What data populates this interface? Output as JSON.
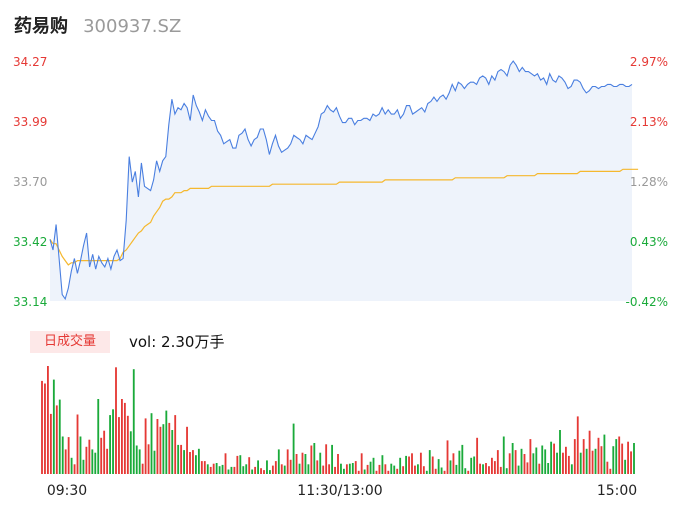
{
  "header": {
    "name": "药易购",
    "code": "300937.SZ"
  },
  "volume_panel": {
    "label": "日成交量",
    "vol_prefix": "vol: ",
    "vol_value": "2.30万手"
  },
  "colors": {
    "up": "#e53935",
    "down": "#1aaa3a",
    "neutral": "#999999",
    "price_line": "#4a7fe0",
    "avg_line": "#f5b82e",
    "area_fill": "#eef3fb"
  },
  "chart_data": [
    {
      "type": "line",
      "y_axis_left": [
        "34.27",
        "33.99",
        "33.70",
        "33.42",
        "33.14"
      ],
      "y_axis_right": [
        "2.97%",
        "2.13%",
        "1.28%",
        "0.43%",
        "-0.42%"
      ],
      "ylim": [
        33.14,
        34.27
      ],
      "series": [
        {
          "values": [
            33.43,
            33.38,
            33.5,
            33.34,
            33.17,
            33.15,
            33.2,
            33.28,
            33.34,
            33.27,
            33.33,
            33.4,
            33.46,
            33.3,
            33.36,
            33.29,
            33.35,
            33.32,
            33.3,
            33.34,
            33.29,
            33.35,
            33.38,
            33.33,
            33.34,
            33.52,
            33.82,
            33.7,
            33.75,
            33.63,
            33.79,
            33.68,
            33.67,
            33.66,
            33.71,
            33.8,
            33.75,
            33.8,
            33.82,
            33.97,
            34.09,
            34.02,
            34.05,
            34.04,
            34.07,
            34.05,
            33.99,
            34.11,
            34.06,
            34.03,
            33.99,
            34.04,
            34.01,
            33.99,
            33.99,
            33.94,
            33.92,
            33.88,
            33.89,
            33.9,
            33.86,
            33.86,
            33.92,
            33.93,
            33.95,
            33.9,
            33.87,
            33.9,
            33.91,
            33.95,
            33.95,
            33.9,
            33.83,
            33.88,
            33.92,
            33.87,
            33.84,
            33.85,
            33.86,
            33.88,
            33.92,
            33.91,
            33.9,
            33.88,
            33.92,
            33.91,
            33.9,
            33.93,
            33.96,
            34.02,
            34.03,
            34.06,
            34.04,
            34.03,
            34.05,
            34.01,
            33.98,
            33.98,
            34.0,
            34.0,
            33.97,
            33.99,
            33.99,
            34.0,
            34.0,
            33.99,
            34.02,
            34.01,
            34.02,
            34.05,
            34.02,
            34.04,
            34.02,
            34.02,
            34.04,
            34.0,
            34.02,
            34.06,
            34.06,
            34.02,
            34.03,
            34.04,
            34.05,
            34.03,
            34.07,
            34.08,
            34.1,
            34.08,
            34.1,
            34.11,
            34.09,
            34.12,
            34.16,
            34.13,
            34.17,
            34.16,
            34.14,
            34.16,
            34.17,
            34.17,
            34.16,
            34.19,
            34.2,
            34.19,
            34.16,
            34.2,
            34.18,
            34.22,
            34.23,
            34.22,
            34.2,
            34.25,
            34.27,
            34.25,
            34.22,
            34.24,
            34.22,
            34.22,
            34.21,
            34.2,
            34.21,
            34.18,
            34.19,
            34.16,
            34.21,
            34.18,
            34.17,
            34.2,
            34.19,
            34.17,
            34.14,
            34.15,
            34.18,
            34.18,
            34.17,
            34.14,
            34.12,
            34.13,
            34.15,
            34.15,
            34.14,
            34.15,
            34.15,
            34.16,
            34.16,
            34.15,
            34.15,
            34.16,
            34.16,
            34.15,
            34.15,
            34.16
          ]
        },
        {
          "values": [
            33.43,
            33.41,
            33.41,
            33.38,
            33.35,
            33.33,
            33.31,
            33.32,
            33.32,
            33.33,
            33.33,
            33.33,
            33.33,
            33.33,
            33.33,
            33.33,
            33.33,
            33.33,
            33.33,
            33.33,
            33.33,
            33.33,
            33.33,
            33.34,
            33.37,
            33.38,
            33.4,
            33.42,
            33.44,
            33.46,
            33.47,
            33.49,
            33.5,
            33.51,
            33.54,
            33.56,
            33.58,
            33.61,
            33.62,
            33.62,
            33.63,
            33.65,
            33.65,
            33.65,
            33.66,
            33.66,
            33.67,
            33.67,
            33.67,
            33.67,
            33.67,
            33.67,
            33.67,
            33.68,
            33.68,
            33.68,
            33.68,
            33.68,
            33.68,
            33.68,
            33.68,
            33.68,
            33.68,
            33.68,
            33.68,
            33.68,
            33.68,
            33.68,
            33.68,
            33.68,
            33.68,
            33.68,
            33.68,
            33.69,
            33.69,
            33.69,
            33.69,
            33.69,
            33.69,
            33.69,
            33.69,
            33.69,
            33.69,
            33.69,
            33.69,
            33.69,
            33.69,
            33.69,
            33.69,
            33.69,
            33.69,
            33.69,
            33.69,
            33.69,
            33.69,
            33.7,
            33.7,
            33.7,
            33.7,
            33.7,
            33.7,
            33.7,
            33.7,
            33.7,
            33.7,
            33.7,
            33.7,
            33.7,
            33.7,
            33.7,
            33.71,
            33.71,
            33.71,
            33.71,
            33.71,
            33.71,
            33.71,
            33.71,
            33.71,
            33.71,
            33.71,
            33.71,
            33.71,
            33.71,
            33.71,
            33.71,
            33.71,
            33.71,
            33.71,
            33.71,
            33.71,
            33.71,
            33.71,
            33.72,
            33.72,
            33.72,
            33.72,
            33.72,
            33.72,
            33.72,
            33.72,
            33.72,
            33.72,
            33.72,
            33.72,
            33.72,
            33.72,
            33.72,
            33.72,
            33.72,
            33.73,
            33.73,
            33.73,
            33.73,
            33.73,
            33.73,
            33.73,
            33.73,
            33.73,
            33.73,
            33.74,
            33.74,
            33.74,
            33.74,
            33.74,
            33.74,
            33.74,
            33.74,
            33.74,
            33.74,
            33.74,
            33.74,
            33.74,
            33.74,
            33.75,
            33.75,
            33.75,
            33.75,
            33.75,
            33.75,
            33.75,
            33.75,
            33.75,
            33.75,
            33.75,
            33.75,
            33.75,
            33.75,
            33.76,
            33.76,
            33.76,
            33.76,
            33.76,
            33.76
          ]
        }
      ]
    },
    {
      "type": "bar",
      "x_ticks": [
        "09:30",
        "11:30/13:00",
        "15:00"
      ],
      "values": [
        14.4,
        14.0,
        16.7,
        9.3,
        14.6,
        10.6,
        11.5,
        5.8,
        3.8,
        5.7,
        2.5,
        1.5,
        9.2,
        5.8,
        2.2,
        4.2,
        5.3,
        3.8,
        3.3,
        11.6,
        5.6,
        6.7,
        3.9,
        9.1,
        10.0,
        16.5,
        8.8,
        11.6,
        11.0,
        9.0,
        6.6,
        16.2,
        4.4,
        3.8,
        1.6,
        8.6,
        4.6,
        9.4,
        3.6,
        8.5,
        7.3,
        7.7,
        9.8,
        7.9,
        6.8,
        9.1,
        4.5,
        4.5,
        3.7,
        7.3,
        3.4,
        3.7,
        2.9,
        3.9,
        2.0,
        2.0,
        1.5,
        1.1,
        1.6,
        1.7,
        1.2,
        1.4,
        3.2,
        0.7,
        1.1,
        1.1,
        2.8,
        2.9,
        1.2,
        1.5,
        2.6,
        0.7,
        1.1,
        2.1,
        0.9,
        0.6,
        2.1,
        0.6,
        1.3,
        2.0,
        3.8,
        1.5,
        1.3,
        3.8,
        2.2,
        7.8,
        3.1,
        1.6,
        3.3,
        3.1,
        1.5,
        4.4,
        4.8,
        2.1,
        3.3,
        1.3,
        4.6,
        1.5,
        4.5,
        1.1,
        3.1,
        1.6,
        0.8,
        1.5,
        1.6,
        1.7,
        2.0,
        0.5,
        3.2,
        0.7,
        1.4,
        1.9,
        2.5,
        0.5,
        1.4,
        2.9,
        1.5,
        0.5,
        1.6,
        1.3,
        0.8,
        2.5,
        1.2,
        2.8,
        2.7,
        3.2,
        1.3,
        1.5,
        3.3,
        1.2,
        0.5,
        3.7,
        2.7,
        0.8,
        2.3,
        1.0,
        0.5,
        5.2,
        2.1,
        3.2,
        1.4,
        3.6,
        4.5,
        0.9,
        0.5,
        2.5,
        2.7,
        5.6,
        1.6,
        1.5,
        1.7,
        1.2,
        2.5,
        2.0,
        3.7,
        1.1,
        5.8,
        0.9,
        3.2,
        4.8,
        3.7,
        1.3,
        3.9,
        3.1,
        1.8,
        5.4,
        3.2,
        4.1,
        1.6,
        4.4,
        3.8,
        1.7,
        5.0,
        4.7,
        3.3,
        6.8,
        3.3,
        4.2,
        2.8,
        1.5,
        5.4,
        8.9,
        3.3,
        5.4,
        3.9,
        6.7,
        3.6,
        3.9,
        5.6,
        4.3,
        6.1,
        1.9,
        0.8,
        4.3,
        5.4,
        5.8,
        4.7,
        2.2,
        5.0,
        3.5,
        4.8
      ],
      "colors": "uuuududduuduudduuddduuudduuuuudddduuudduuddudududuuudduuduudddudduudddududuudduududuudududdududuuuduuddudduuududduuduuddududuuuduudduudduududdddudduuduuuuuuddududduuudduddddudduuuduududuuduuduudduuduudududuuuduudduuuuudduududdudu"
    }
  ]
}
